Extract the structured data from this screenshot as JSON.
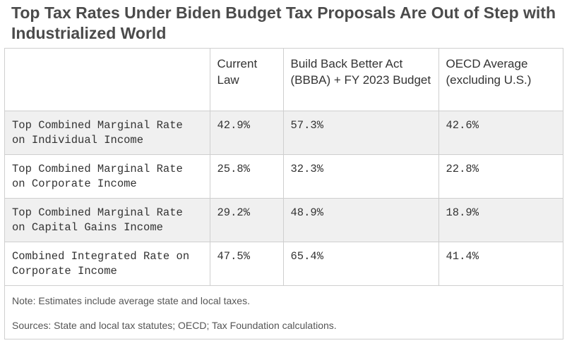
{
  "title": "Top Tax Rates Under Biden Budget Tax Proposals Are Out of Step with Industrialized World",
  "chart_data": {
    "type": "table",
    "columns": [
      "",
      "Current Law",
      "Build Back Better Act (BBBA) + FY 2023 Budget",
      "OECD Average (excluding U.S.)"
    ],
    "rows": [
      {
        "label": "Top Combined Marginal Rate on Individual Income",
        "values": [
          "42.9%",
          "57.3%",
          "42.6%"
        ]
      },
      {
        "label": "Top Combined Marginal Rate on Corporate Income",
        "values": [
          "25.8%",
          "32.3%",
          "22.8%"
        ]
      },
      {
        "label": "Top Combined Marginal Rate on Capital Gains Income",
        "values": [
          "29.2%",
          "48.9%",
          "18.9%"
        ]
      },
      {
        "label": "Combined Integrated Rate on Corporate Income",
        "values": [
          "47.5%",
          "65.4%",
          "41.4%"
        ]
      }
    ],
    "numeric": [
      [
        42.9,
        57.3,
        42.6
      ],
      [
        25.8,
        32.3,
        22.8
      ],
      [
        29.2,
        48.9,
        18.9
      ],
      [
        47.5,
        65.4,
        41.4
      ]
    ]
  },
  "note": "Note: Estimates include average state and local taxes.",
  "sources": "Sources: State and local tax statutes; OECD; Tax Foundation calculations.",
  "colors": {
    "shaded_row": "#f0f0f0",
    "border": "#cfcfcf",
    "title_text": "#4b4b4b"
  }
}
